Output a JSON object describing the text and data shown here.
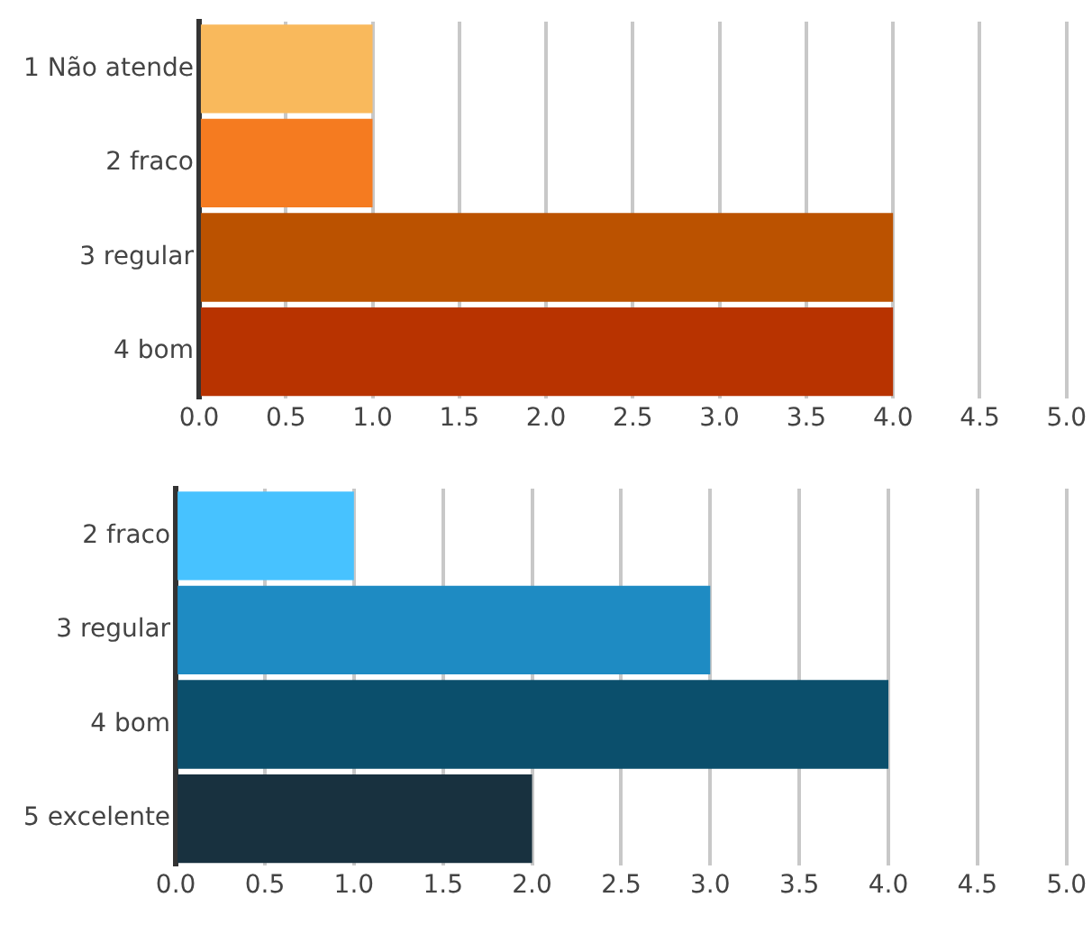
{
  "chart_data": [
    {
      "type": "bar",
      "orientation": "horizontal",
      "categories": [
        "1 Não atende",
        "2 fraco",
        "3 regular",
        "4 bom"
      ],
      "values": [
        1,
        1,
        4,
        4
      ],
      "colors": [
        "#f9b95c",
        "#f57b20",
        "#bb5200",
        "#b83300"
      ],
      "xlim": [
        0,
        5
      ],
      "xticks": [
        {
          "value": 0,
          "label": "0.0"
        },
        0.5,
        {
          "value": 1,
          "label": "1.0"
        },
        1.5,
        {
          "value": 2,
          "label": "2.0"
        },
        2.5,
        {
          "value": 3,
          "label": "3.0"
        },
        3.5,
        {
          "value": 4,
          "label": "4.0"
        },
        4.5,
        {
          "value": 5,
          "label": "5.0"
        }
      ],
      "grid": "x",
      "legend": false
    },
    {
      "type": "bar",
      "orientation": "horizontal",
      "categories": [
        "2 fraco",
        "3 regular",
        "4 bom",
        "5 excelente"
      ],
      "values": [
        1,
        3,
        4,
        2
      ],
      "colors": [
        "#47c2ff",
        "#1e8bc3",
        "#0b4f6c",
        "#18313f"
      ],
      "xlim": [
        0,
        5
      ],
      "xticks": [
        {
          "value": 0,
          "label": "0.0"
        },
        0.5,
        {
          "value": 1,
          "label": "1.0"
        },
        1.5,
        {
          "value": 2,
          "label": "2.0"
        },
        2.5,
        {
          "value": 3,
          "label": "3.0"
        },
        3.5,
        {
          "value": 4,
          "label": "4.0"
        },
        4.5,
        {
          "value": 5,
          "label": "5.0"
        }
      ],
      "grid": "x",
      "legend": false
    }
  ]
}
